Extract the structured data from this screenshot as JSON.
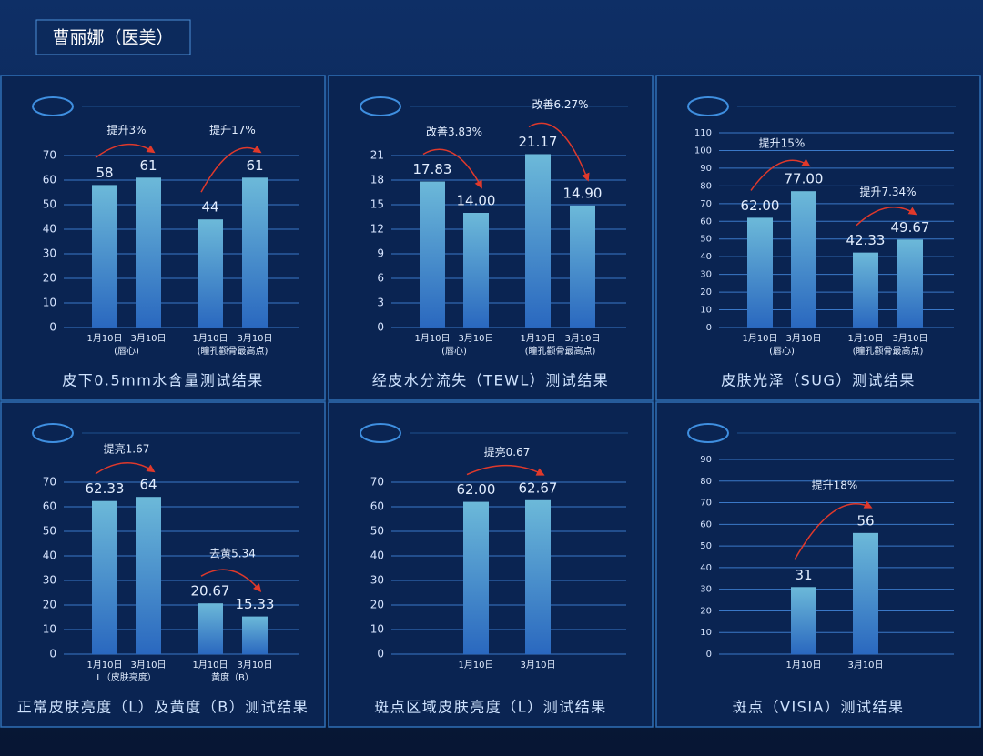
{
  "header": {
    "title": "曹丽娜（医美）"
  },
  "chart_data": [
    {
      "type": "bar",
      "title": "皮下0.5mm水含量测试结果",
      "categories": [
        "1月10日",
        "3月10日",
        "1月10日",
        "3月10日"
      ],
      "groups": [
        "(唇心)",
        "(瞳孔颧骨最高点)"
      ],
      "values": [
        58,
        61,
        44,
        61
      ],
      "annotations": [
        "提升3%",
        "提升17%"
      ],
      "ylim": [
        0,
        70
      ],
      "yticks": [
        0,
        10,
        20,
        30,
        40,
        50,
        60,
        70
      ],
      "grid": true
    },
    {
      "type": "bar",
      "title": "经皮水分流失（TEWL）测试结果",
      "categories": [
        "1月10日",
        "3月10日",
        "1月10日",
        "3月10日"
      ],
      "groups": [
        "(唇心)",
        "(瞳孔颧骨最高点)"
      ],
      "values": [
        17.83,
        14.0,
        21.17,
        14.9
      ],
      "value_labels": [
        "17.83",
        "14.00",
        "21.17",
        "14.90"
      ],
      "annotations": [
        "改善3.83%",
        "改善6.27%"
      ],
      "ylim": [
        0,
        21
      ],
      "yticks": [
        0,
        3,
        6,
        9,
        12,
        15,
        18,
        21
      ],
      "grid": true
    },
    {
      "type": "bar",
      "title": "皮肤光泽（SUG）测试结果",
      "categories": [
        "1月10日",
        "3月10日",
        "1月10日",
        "3月10日"
      ],
      "groups": [
        "(唇心)",
        "(瞳孔颧骨最高点)"
      ],
      "values": [
        62,
        77,
        42.33,
        49.67
      ],
      "value_labels": [
        "62.00",
        "77.00",
        "42.33",
        "49.67"
      ],
      "annotations": [
        "提升15%",
        "提升7.34%"
      ],
      "ylim": [
        0,
        110
      ],
      "yticks": [
        0,
        10,
        20,
        30,
        40,
        50,
        60,
        70,
        80,
        90,
        100,
        110
      ],
      "grid": true
    },
    {
      "type": "bar",
      "title": "正常皮肤亮度（L）及黄度（B）测试结果",
      "categories": [
        "1月10日",
        "3月10日",
        "1月10日",
        "3月10日"
      ],
      "groups": [
        "L（皮肤亮度）",
        "黄度（B）"
      ],
      "values": [
        62.33,
        64,
        20.67,
        15.33
      ],
      "annotations": [
        "提亮1.67",
        "去黄5.34"
      ],
      "ylim": [
        0,
        70
      ],
      "yticks": [
        0,
        10,
        20,
        30,
        40,
        50,
        60,
        70
      ],
      "grid": true
    },
    {
      "type": "bar",
      "title": "斑点区域皮肤亮度（L）测试结果",
      "categories": [
        "1月10日",
        "3月10日"
      ],
      "values": [
        62,
        62.67
      ],
      "value_labels": [
        "62.00",
        "62.67"
      ],
      "annotations": [
        "提亮0.67"
      ],
      "ylim": [
        0,
        70
      ],
      "yticks": [
        0,
        10,
        20,
        30,
        40,
        50,
        60,
        70
      ],
      "grid": true
    },
    {
      "type": "bar",
      "title": "斑点（VISIA）测试结果",
      "categories": [
        "1月10日",
        "3月10日"
      ],
      "values": [
        31,
        56
      ],
      "annotations": [
        "提升18%"
      ],
      "ylim": [
        0,
        90
      ],
      "yticks": [
        0,
        10,
        20,
        30,
        40,
        50,
        60,
        70,
        80,
        90
      ],
      "grid": true
    }
  ]
}
